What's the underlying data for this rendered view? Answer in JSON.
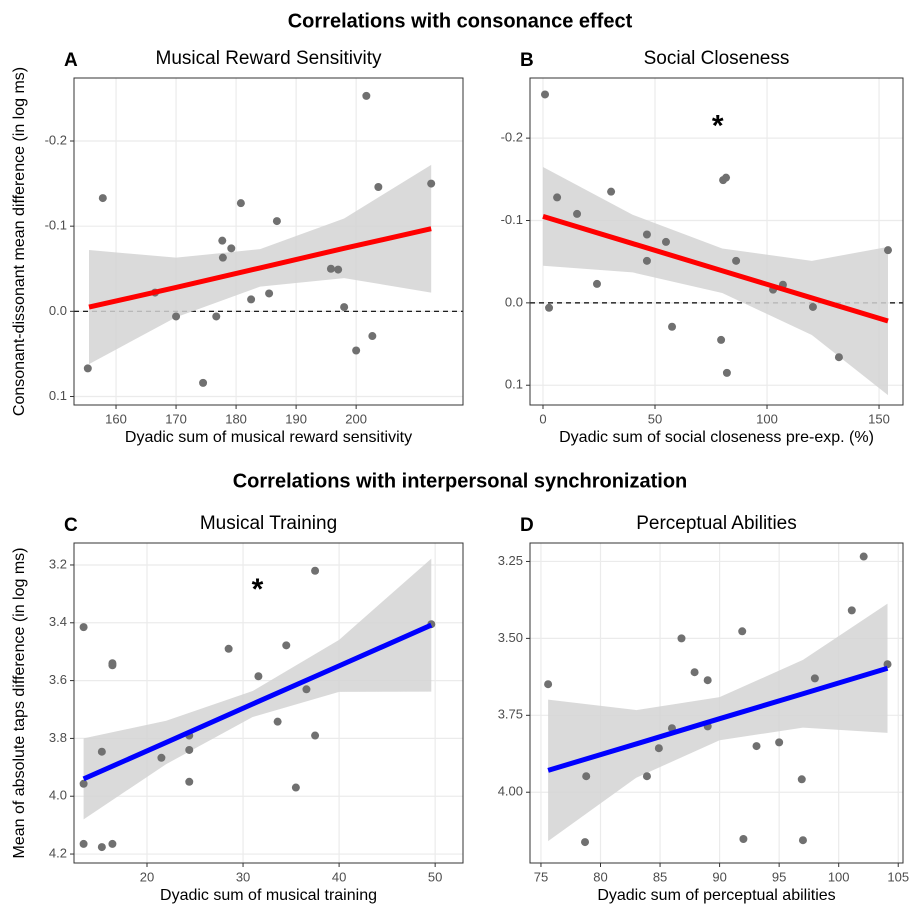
{
  "headings": [
    "Correlations with consonance effect",
    "Correlations with interpersonal synchronization"
  ],
  "chart_data": [
    {
      "type": "scatter",
      "panel": "A",
      "title": "Musical Reward Sensitivity",
      "xlabel": "Dyadic sum of musical reward sensitivity",
      "ylabel": "Consonant-dissonant mean difference (in log ms)",
      "x": [
        155.3,
        157.8,
        166.5,
        170,
        174.5,
        176.7,
        177.7,
        177.8,
        179.2,
        182.5,
        180.8,
        185.5,
        186.8,
        195.8,
        197,
        198,
        200,
        202.7,
        201.7,
        203.7,
        212.5
      ],
      "values": [
        0.067,
        -0.133,
        -0.022,
        0.006,
        0.084,
        0.006,
        -0.083,
        -0.063,
        -0.074,
        -0.014,
        -0.127,
        -0.021,
        -0.106,
        -0.05,
        -0.049,
        -0.005,
        0.046,
        0.029,
        -0.253,
        -0.146,
        -0.15
      ],
      "point_color": "#707070",
      "fit": {
        "x": [
          155.5,
          170,
          184,
          198,
          212.5
        ],
        "values": [
          -0.005,
          -0.028,
          -0.051,
          -0.074,
          -0.097
        ],
        "color": "#ff0000"
      },
      "ci": {
        "x": [
          155.5,
          170,
          184,
          198,
          212.5
        ],
        "lower": [
          -0.072,
          -0.063,
          -0.073,
          -0.109,
          -0.172
        ],
        "upper": [
          0.062,
          0.007,
          -0.029,
          -0.039,
          -0.022
        ],
        "color": "#d3d3d3"
      },
      "hline": 0,
      "xlim": [
        153,
        217.8
      ],
      "ylim": [
        0.11,
        -0.274
      ],
      "xticks": [
        160,
        170,
        180,
        190,
        200
      ],
      "yticks": [
        -0.2,
        -0.1,
        {
          "value": 0,
          "label": "0.0"
        },
        0.1
      ],
      "grid": true
    },
    {
      "type": "scatter",
      "panel": "B",
      "title": "Social Closeness",
      "xlabel": "Dyadic sum of social closeness pre-exp. (%)",
      "x": [
        0.9,
        2.7,
        6.3,
        15.2,
        24.1,
        30.4,
        46.4,
        46.4,
        54.9,
        57.6,
        79.5,
        80.4,
        81.7,
        82.1,
        86.2,
        102.7,
        107.1,
        120.5,
        132.1,
        154
      ],
      "values": [
        -0.253,
        0.006,
        -0.128,
        -0.108,
        -0.023,
        -0.135,
        -0.083,
        -0.051,
        -0.074,
        0.029,
        0.045,
        -0.149,
        -0.152,
        0.085,
        -0.051,
        -0.016,
        -0.022,
        0.005,
        0.066,
        -0.064
      ],
      "point_color": "#707070",
      "fit": {
        "x": [
          0,
          40,
          80,
          120,
          154
        ],
        "values": [
          -0.105,
          -0.072,
          -0.039,
          -0.006,
          0.022
        ],
        "color": "#ff0000"
      },
      "ci": {
        "x": [
          0,
          40,
          80,
          120,
          154
        ],
        "lower": [
          -0.165,
          -0.107,
          -0.066,
          -0.051,
          -0.068
        ],
        "upper": [
          -0.045,
          -0.037,
          -0.012,
          0.039,
          0.112
        ],
        "color": "#d3d3d3"
      },
      "hline": 0,
      "annotation": {
        "text": "*",
        "x": 78,
        "y": -0.22
      },
      "xlim": [
        -5.8,
        160.7
      ],
      "ylim": [
        0.124,
        -0.273
      ],
      "xticks": [
        0,
        50,
        100,
        150
      ],
      "yticks": [
        -0.2,
        -0.1,
        {
          "value": 0,
          "label": "0.0"
        },
        0.1
      ],
      "grid": true
    },
    {
      "type": "scatter",
      "panel": "C",
      "title": "Musical Training",
      "xlabel": "Dyadic sum of musical training",
      "ylabel": "Mean of absolute taps difference (in log ms)",
      "x": [
        13.4,
        13.4,
        13.4,
        15.3,
        15.3,
        16.4,
        16.4,
        16.4,
        21.5,
        24.4,
        24.4,
        24.4,
        28.5,
        31.6,
        33.6,
        34.5,
        36.6,
        35.5,
        37.5,
        37.5,
        49.6
      ],
      "values": [
        3.957,
        3.415,
        4.165,
        4.176,
        3.846,
        3.54,
        3.547,
        4.165,
        3.867,
        3.95,
        3.84,
        3.79,
        3.49,
        3.585,
        3.742,
        3.478,
        3.63,
        3.97,
        3.22,
        3.79,
        3.405
      ],
      "point_color": "#707070",
      "fit": {
        "x": [
          13.4,
          22,
          31,
          40,
          49.6
        ],
        "values": [
          3.94,
          3.814,
          3.681,
          3.549,
          3.408
        ],
        "color": "#0000ff"
      },
      "ci": {
        "x": [
          13.4,
          22,
          31,
          40,
          49.6
        ],
        "lower": [
          3.8,
          3.739,
          3.636,
          3.459,
          3.178
        ],
        "upper": [
          4.08,
          3.889,
          3.726,
          3.639,
          3.638
        ],
        "color": "#d3d3d3"
      },
      "annotation": {
        "text": "*",
        "x": 31.5,
        "y": 3.27
      },
      "xlim": [
        12.4,
        52.9
      ],
      "ylim": [
        4.231,
        3.124
      ],
      "xticks": [
        20,
        30,
        40,
        50
      ],
      "yticks": [
        3.2,
        3.4,
        3.6,
        3.8,
        {
          "value": 4,
          "label": "4.0"
        },
        4.2
      ],
      "grid": true
    },
    {
      "type": "scatter",
      "panel": "D",
      "title": "Perceptual Abilities",
      "xlabel": "Dyadic sum of perceptual abilities",
      "x": [
        75.6,
        78.8,
        78.7,
        83.9,
        84.9,
        86,
        86.8,
        87.9,
        89,
        89,
        91.9,
        92,
        93.1,
        95,
        96.9,
        97,
        98,
        101.1,
        102.1,
        104.1
      ],
      "values": [
        3.649,
        3.948,
        4.162,
        3.948,
        3.857,
        3.792,
        3.5,
        3.61,
        3.636,
        3.786,
        3.477,
        4.152,
        3.85,
        3.838,
        3.958,
        4.156,
        3.63,
        3.409,
        3.234,
        3.584
      ],
      "point_color": "#707070",
      "fit": {
        "x": [
          75.6,
          83,
          90,
          97,
          104.1
        ],
        "values": [
          3.929,
          3.843,
          3.761,
          3.68,
          3.597
        ],
        "color": "#0000ff"
      },
      "ci": {
        "x": [
          75.6,
          83,
          90,
          97,
          104.1
        ],
        "lower": [
          3.699,
          3.733,
          3.691,
          3.57,
          3.387
        ],
        "upper": [
          4.159,
          3.953,
          3.831,
          3.79,
          3.807
        ],
        "color": "#d3d3d3"
      },
      "xlim": [
        74.08,
        105.4
      ],
      "ylim": [
        4.23,
        3.19
      ],
      "xticks": [
        75,
        80,
        85,
        90,
        95,
        100,
        105
      ],
      "yticks": [
        3.25,
        {
          "value": 3.5,
          "label": "3.50"
        },
        3.75,
        {
          "value": 4,
          "label": "4.00"
        }
      ],
      "grid": true
    }
  ]
}
